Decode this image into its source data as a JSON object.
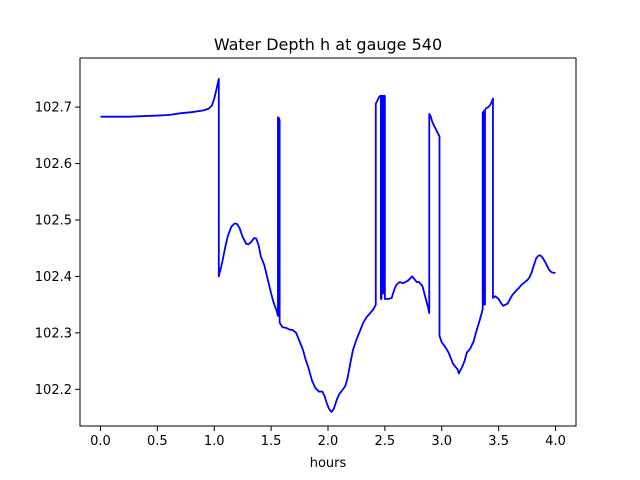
{
  "chart_data": {
    "type": "line",
    "title": "Water Depth h at gauge 540",
    "xlabel": "hours",
    "ylabel": "",
    "xlim": [
      -0.18,
      4.18
    ],
    "ylim": [
      102.135,
      102.787
    ],
    "xticks": [
      0.0,
      0.5,
      1.0,
      1.5,
      2.0,
      2.5,
      3.0,
      3.5,
      4.0
    ],
    "xtick_labels": [
      "0.0",
      "0.5",
      "1.0",
      "1.5",
      "2.0",
      "2.5",
      "3.0",
      "3.5",
      "4.0"
    ],
    "yticks": [
      102.2,
      102.3,
      102.4,
      102.5,
      102.6,
      102.7
    ],
    "ytick_labels": [
      "102.2",
      "102.3",
      "102.4",
      "102.5",
      "102.6",
      "102.7"
    ],
    "grid": false,
    "legend": "none",
    "series": [
      {
        "color": "#0000ff",
        "points": [
          [
            0.0,
            102.683
          ],
          [
            0.25,
            102.683
          ],
          [
            0.5,
            102.685
          ],
          [
            0.6,
            102.686
          ],
          [
            0.7,
            102.689
          ],
          [
            0.8,
            102.691
          ],
          [
            0.9,
            102.694
          ],
          [
            0.95,
            102.697
          ],
          [
            0.98,
            102.703
          ],
          [
            1.0,
            102.715
          ],
          [
            1.02,
            102.732
          ],
          [
            1.04,
            102.75
          ],
          [
            1.04,
            102.4
          ],
          [
            1.07,
            102.425
          ],
          [
            1.1,
            102.455
          ],
          [
            1.12,
            102.472
          ],
          [
            1.15,
            102.488
          ],
          [
            1.18,
            102.494
          ],
          [
            1.2,
            102.493
          ],
          [
            1.22,
            102.487
          ],
          [
            1.25,
            102.47
          ],
          [
            1.28,
            102.458
          ],
          [
            1.3,
            102.457
          ],
          [
            1.32,
            102.46
          ],
          [
            1.35,
            102.468
          ],
          [
            1.37,
            102.467
          ],
          [
            1.39,
            102.455
          ],
          [
            1.41,
            102.435
          ],
          [
            1.44,
            102.42
          ],
          [
            1.47,
            102.395
          ],
          [
            1.5,
            102.37
          ],
          [
            1.52,
            102.355
          ],
          [
            1.55,
            102.338
          ],
          [
            1.56,
            102.33
          ],
          [
            1.56,
            102.682
          ],
          [
            1.57,
            102.68
          ],
          [
            1.575,
            102.675
          ],
          [
            1.575,
            102.318
          ],
          [
            1.6,
            102.31
          ],
          [
            1.63,
            102.309
          ],
          [
            1.66,
            102.306
          ],
          [
            1.69,
            102.305
          ],
          [
            1.72,
            102.3
          ],
          [
            1.75,
            102.285
          ],
          [
            1.78,
            102.27
          ],
          [
            1.8,
            102.255
          ],
          [
            1.83,
            102.237
          ],
          [
            1.86,
            102.215
          ],
          [
            1.89,
            102.202
          ],
          [
            1.92,
            102.196
          ],
          [
            1.95,
            102.196
          ],
          [
            1.97,
            102.188
          ],
          [
            1.99,
            102.175
          ],
          [
            2.01,
            102.165
          ],
          [
            2.03,
            102.16
          ],
          [
            2.05,
            102.165
          ],
          [
            2.08,
            102.183
          ],
          [
            2.1,
            102.192
          ],
          [
            2.12,
            102.197
          ],
          [
            2.15,
            102.205
          ],
          [
            2.17,
            102.218
          ],
          [
            2.2,
            102.25
          ],
          [
            2.22,
            102.27
          ],
          [
            2.25,
            102.288
          ],
          [
            2.28,
            102.303
          ],
          [
            2.31,
            102.318
          ],
          [
            2.34,
            102.328
          ],
          [
            2.37,
            102.335
          ],
          [
            2.4,
            102.342
          ],
          [
            2.42,
            102.35
          ],
          [
            2.42,
            102.706
          ],
          [
            2.44,
            102.714
          ],
          [
            2.45,
            102.718
          ],
          [
            2.46,
            102.72
          ],
          [
            2.465,
            102.72
          ],
          [
            2.465,
            102.36
          ],
          [
            2.47,
            102.36
          ],
          [
            2.47,
            102.72
          ],
          [
            2.48,
            102.72
          ],
          [
            2.48,
            102.37
          ],
          [
            2.49,
            102.37
          ],
          [
            2.49,
            102.72
          ],
          [
            2.5,
            102.72
          ],
          [
            2.5,
            102.36
          ],
          [
            2.53,
            102.36
          ],
          [
            2.56,
            102.362
          ],
          [
            2.58,
            102.375
          ],
          [
            2.6,
            102.385
          ],
          [
            2.63,
            102.39
          ],
          [
            2.66,
            102.388
          ],
          [
            2.7,
            102.392
          ],
          [
            2.74,
            102.4
          ],
          [
            2.76,
            102.395
          ],
          [
            2.78,
            102.39
          ],
          [
            2.8,
            102.39
          ],
          [
            2.83,
            102.383
          ],
          [
            2.86,
            102.36
          ],
          [
            2.88,
            102.345
          ],
          [
            2.89,
            102.335
          ],
          [
            2.89,
            102.688
          ],
          [
            2.9,
            102.685
          ],
          [
            2.92,
            102.672
          ],
          [
            2.95,
            102.66
          ],
          [
            2.98,
            102.648
          ],
          [
            2.98,
            102.295
          ],
          [
            3.0,
            102.283
          ],
          [
            3.02,
            102.278
          ],
          [
            3.04,
            102.272
          ],
          [
            3.06,
            102.265
          ],
          [
            3.08,
            102.255
          ],
          [
            3.1,
            102.245
          ],
          [
            3.12,
            102.24
          ],
          [
            3.14,
            102.235
          ],
          [
            3.15,
            102.228
          ],
          [
            3.16,
            102.232
          ],
          [
            3.18,
            102.24
          ],
          [
            3.2,
            102.25
          ],
          [
            3.22,
            102.265
          ],
          [
            3.25,
            102.272
          ],
          [
            3.28,
            102.285
          ],
          [
            3.3,
            102.3
          ],
          [
            3.33,
            102.32
          ],
          [
            3.355,
            102.338
          ],
          [
            3.36,
            102.342
          ],
          [
            3.36,
            102.69
          ],
          [
            3.37,
            102.693
          ],
          [
            3.37,
            102.35
          ],
          [
            3.38,
            102.35
          ],
          [
            3.38,
            102.695
          ],
          [
            3.39,
            102.698
          ],
          [
            3.41,
            102.7
          ],
          [
            3.43,
            102.705
          ],
          [
            3.45,
            102.715
          ],
          [
            3.45,
            102.362
          ],
          [
            3.47,
            102.365
          ],
          [
            3.5,
            102.36
          ],
          [
            3.52,
            102.353
          ],
          [
            3.54,
            102.348
          ],
          [
            3.56,
            102.35
          ],
          [
            3.58,
            102.352
          ],
          [
            3.6,
            102.36
          ],
          [
            3.62,
            102.367
          ],
          [
            3.65,
            102.374
          ],
          [
            3.68,
            102.38
          ],
          [
            3.7,
            102.385
          ],
          [
            3.73,
            102.39
          ],
          [
            3.75,
            102.393
          ],
          [
            3.77,
            102.398
          ],
          [
            3.79,
            102.407
          ],
          [
            3.81,
            102.42
          ],
          [
            3.83,
            102.432
          ],
          [
            3.85,
            102.437
          ],
          [
            3.87,
            102.437
          ],
          [
            3.89,
            102.432
          ],
          [
            3.91,
            102.425
          ],
          [
            3.93,
            102.417
          ],
          [
            3.95,
            102.41
          ],
          [
            3.97,
            102.407
          ],
          [
            4.0,
            102.406
          ]
        ]
      }
    ]
  }
}
